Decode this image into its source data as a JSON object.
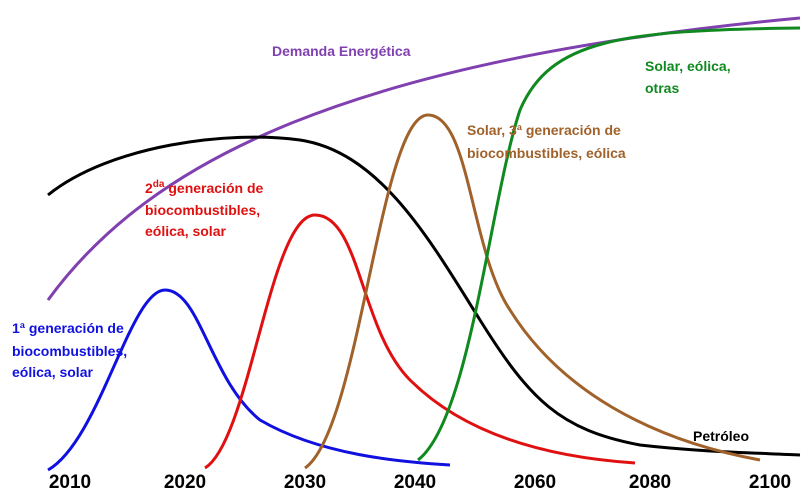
{
  "years": [
    "2010",
    "2020",
    "2030",
    "2040",
    "2060",
    "2080",
    "2100"
  ],
  "demand": "Demanda Energética",
  "oil": "Petróleo",
  "first_gen": [
    "1ª generación de",
    "biocombustibles,",
    "eólica, solar"
  ],
  "second_gen": {
    "number": "2",
    "sup": "da",
    "rest": " generación de",
    "lines": [
      "biocombustibles,",
      "eólica, solar"
    ]
  },
  "third_gen": [
    "Solar, 3ª generación de",
    "biocombustibles, eólica"
  ],
  "renewables": [
    "Solar, eólica,",
    "otras"
  ]
}
